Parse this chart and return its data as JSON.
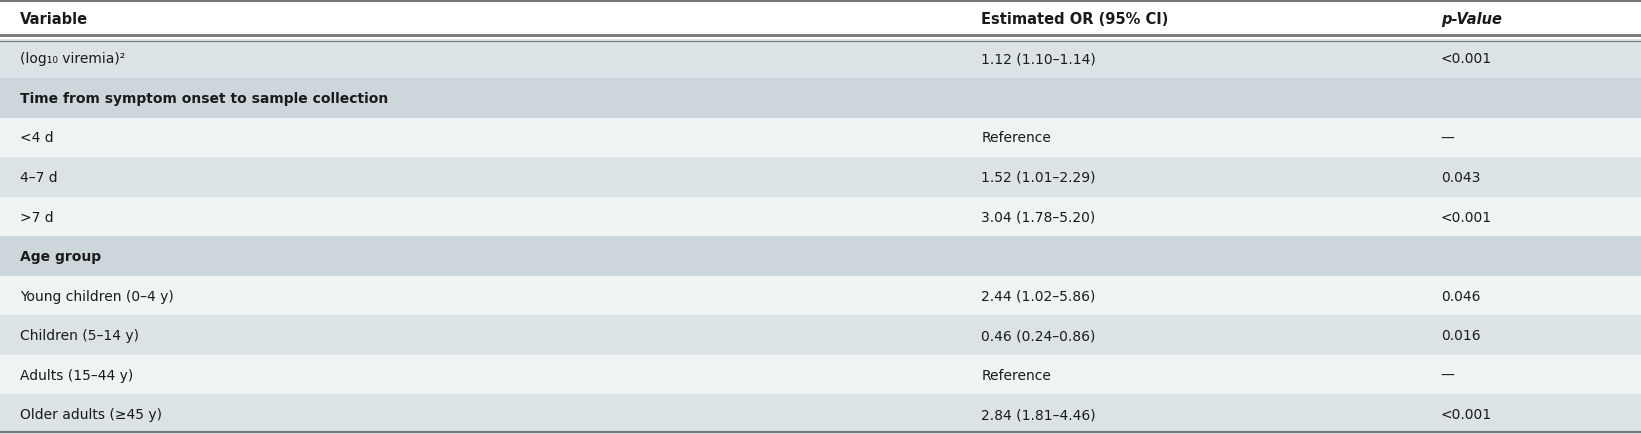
{
  "rows": [
    {
      "variable": "(log₁₀ viremia)²",
      "or_ci": "1.12 (1.10–1.14)",
      "p_value": "<0.001",
      "is_subheader": false,
      "bg": "#dce3e7"
    },
    {
      "variable": "Time from symptom onset to sample collection",
      "or_ci": "",
      "p_value": "",
      "is_subheader": true,
      "bg": "#cdd6db"
    },
    {
      "variable": "<4 d",
      "or_ci": "Reference",
      "p_value": "—",
      "is_subheader": false,
      "bg": "#f0f3f4"
    },
    {
      "variable": "4–7 d",
      "or_ci": "1.52 (1.01–2.29)",
      "p_value": "0.043",
      "is_subheader": false,
      "bg": "#dce3e7"
    },
    {
      "variable": ">7 d",
      "or_ci": "3.04 (1.78–5.20)",
      "p_value": "<0.001",
      "is_subheader": false,
      "bg": "#f0f3f4"
    },
    {
      "variable": "Age group",
      "or_ci": "",
      "p_value": "",
      "is_subheader": true,
      "bg": "#cdd6db"
    },
    {
      "variable": "Young children (0–4 y)",
      "or_ci": "2.44 (1.02–5.86)",
      "p_value": "0.046",
      "is_subheader": false,
      "bg": "#f0f3f4"
    },
    {
      "variable": "Children (5–14 y)",
      "or_ci": "0.46 (0.24–0.86)",
      "p_value": "0.016",
      "is_subheader": false,
      "bg": "#dce3e7"
    },
    {
      "variable": "Adults (15–44 y)",
      "or_ci": "Reference",
      "p_value": "—",
      "is_subheader": false,
      "bg": "#f0f3f4"
    },
    {
      "variable": "Older adults (≥45 y)",
      "or_ci": "2.84 (1.81–4.46)",
      "p_value": "<0.001",
      "is_subheader": false,
      "bg": "#dce3e7"
    }
  ],
  "col_header": {
    "variable": "Variable",
    "or_ci": "Estimated OR (95% CI)",
    "p_value": "p-Value"
  },
  "col_x_norm": {
    "variable": 0.012,
    "or_ci": 0.598,
    "p_value": 0.878
  },
  "header_bg": "#ffffff",
  "font_size_header": 10.5,
  "font_size_body": 10.0,
  "text_color": "#1a1a1a",
  "fig_bg": "#ffffff",
  "line_color": "#777777"
}
